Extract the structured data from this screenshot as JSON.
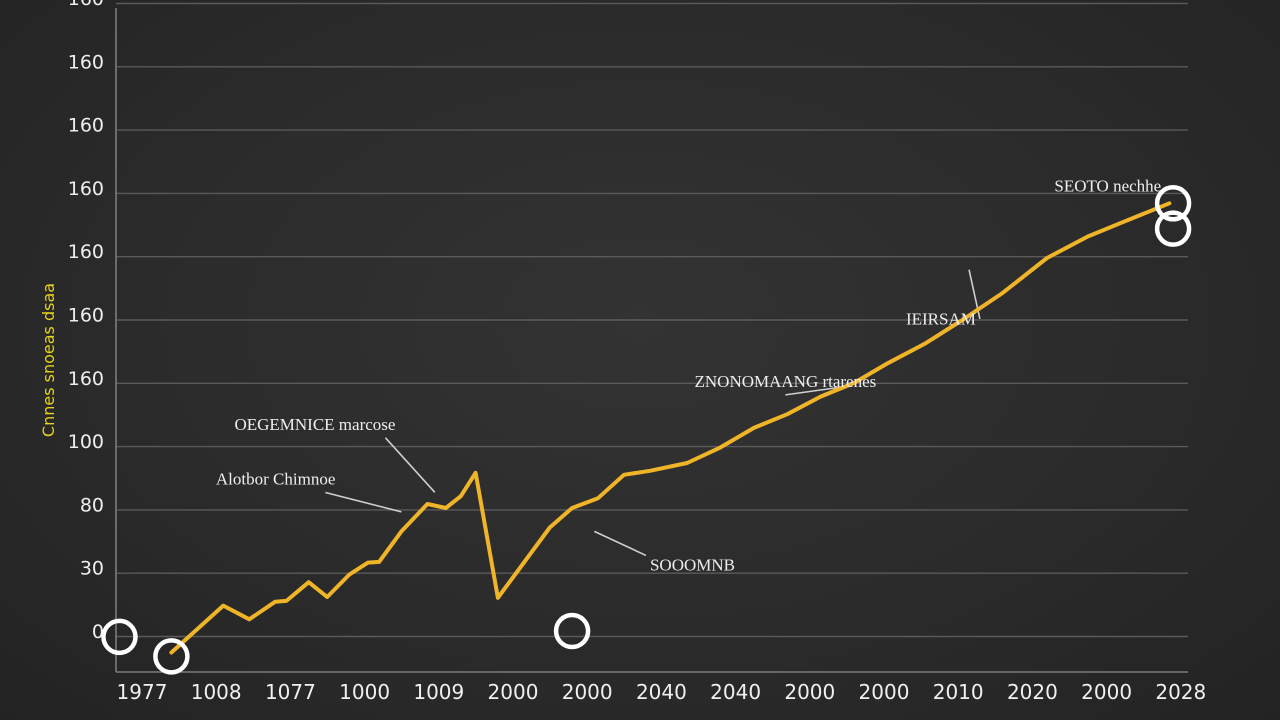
{
  "chart_data": {
    "type": "line",
    "title": "",
    "xlabel": "",
    "ylabel": "Cnnes snoeas dsaa",
    "ylim": [
      0,
      170
    ],
    "yticks": [
      "0",
      "30",
      "80",
      "100",
      "160",
      "160",
      "160",
      "160",
      "160",
      "160",
      "160",
      "160"
    ],
    "xticks": [
      "1977",
      "1008",
      "1077",
      "1000",
      "1009",
      "2000",
      "2000",
      "2040",
      "2040",
      "2000",
      "2000",
      "2010",
      "2020",
      "2000",
      "2028"
    ],
    "grid": true,
    "legend": "none",
    "series": [
      {
        "color": "#f0b429",
        "x": [
          0.45,
          1.15,
          1.5,
          1.85,
          2.0,
          2.3,
          2.55,
          2.85,
          3.1,
          3.25,
          3.55,
          3.9,
          4.15,
          4.35,
          4.55,
          4.85,
          5.55,
          5.85,
          6.2,
          6.55,
          6.9,
          7.4,
          7.85,
          8.3,
          8.75,
          9.2,
          9.65,
          10.1,
          10.6,
          11.1,
          11.65,
          12.25,
          12.8,
          13.25,
          13.9
        ],
        "y": [
          5.0,
          17.0,
          13.5,
          18.0,
          18.2,
          23.0,
          19.2,
          25.0,
          28.0,
          28.2,
          36.0,
          43.0,
          42.0,
          45.0,
          51.0,
          19.0,
          37.0,
          42.0,
          44.5,
          50.5,
          51.5,
          53.5,
          57.5,
          62.5,
          66.0,
          70.5,
          74.0,
          79.0,
          84.0,
          90.0,
          97.0,
          106.0,
          111.5,
          115.0,
          120.0
        ]
      }
    ],
    "markers": [
      {
        "x": -0.25,
        "y": 9.0
      },
      {
        "x": 0.45,
        "y": 4.0
      },
      {
        "x": 5.85,
        "y": 10.5
      },
      {
        "x": 13.95,
        "y": 120.0
      },
      {
        "x": 13.95,
        "y": 113.5
      }
    ],
    "annotations": [
      {
        "text": "SEOTO nechhe",
        "at_x": 12.35,
        "at_y": 123.0,
        "target_x": 12.35,
        "target_y": 123.0
      },
      {
        "text": "IEIRSAM",
        "at_x": 10.35,
        "at_y": 89.0,
        "target_x": 11.2,
        "target_y": 103.0
      },
      {
        "text": "ZNONOMAANG rtarenes",
        "at_x": 7.5,
        "at_y": 73.0,
        "target_x": 9.5,
        "target_y": 73.0
      },
      {
        "text": "OEGEMNICE marcose",
        "at_x": 1.3,
        "at_y": 62.0,
        "target_x": 4.0,
        "target_y": 46.0
      },
      {
        "text": "Alotbor Chimnoe",
        "at_x": 1.05,
        "at_y": 48.0,
        "target_x": 3.55,
        "target_y": 41.0
      },
      {
        "text": "SOOOMNB",
        "at_x": 6.9,
        "at_y": 26.0,
        "target_x": 6.15,
        "target_y": 36.0
      }
    ]
  }
}
